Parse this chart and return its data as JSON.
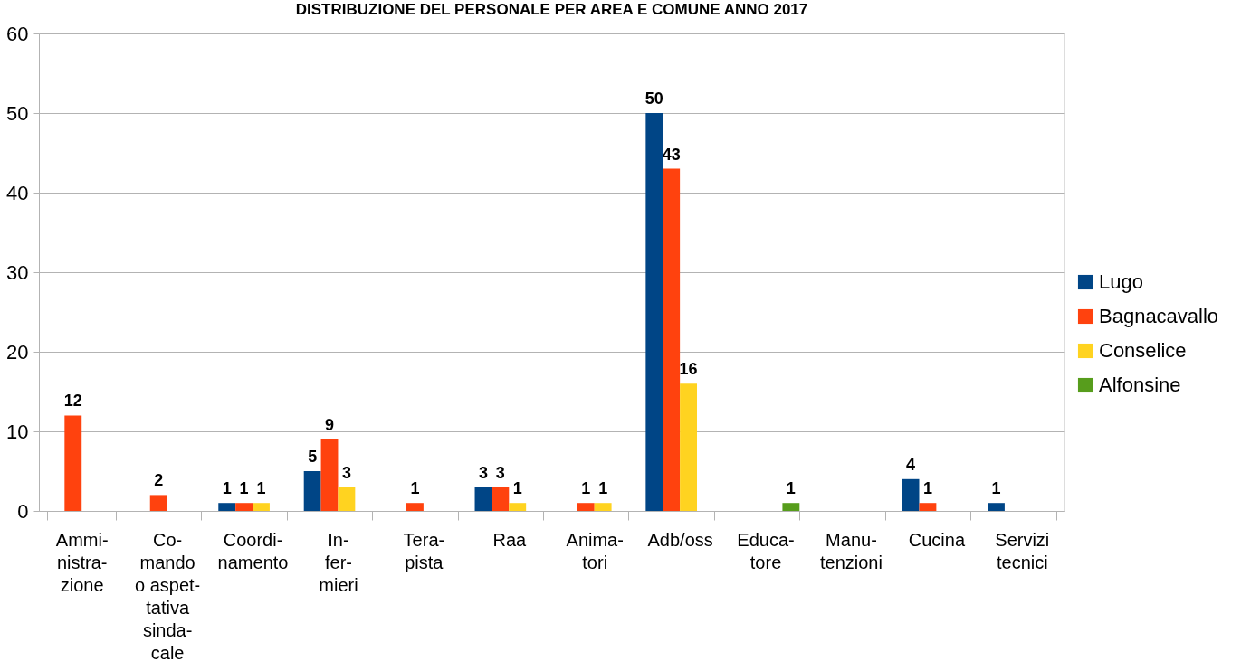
{
  "chart_data": {
    "type": "bar",
    "title": "DISTRIBUZIONE DEL PERSONALE PER AREA E COMUNE ANNO 2017",
    "categories": [
      "Ammi-\nnistra-\nzione",
      "Co-\nmando\no aspet-\ntativa\nsinda-\ncale",
      "Coordi-\nnamento",
      "In-\nfer-\nmieri",
      "Tera-\npista",
      "Raa",
      "Anima-\ntori",
      "Adb/oss",
      "Educa-\ntore",
      "Manu-\ntenzioni",
      "Cucina",
      "Servizi\ntecnici"
    ],
    "series": [
      {
        "name": "Lugo",
        "color": "#004586",
        "values": [
          null,
          null,
          1,
          5,
          null,
          3,
          null,
          50,
          null,
          null,
          4,
          1
        ]
      },
      {
        "name": "Bagnacavallo",
        "color": "#ff420e",
        "values": [
          12,
          2,
          1,
          9,
          1,
          3,
          1,
          43,
          null,
          null,
          1,
          null
        ]
      },
      {
        "name": "Conselice",
        "color": "#ffd320",
        "values": [
          null,
          null,
          1,
          3,
          null,
          1,
          1,
          16,
          null,
          null,
          null,
          null
        ]
      },
      {
        "name": "Alfonsine",
        "color": "#579d1c",
        "values": [
          null,
          null,
          null,
          null,
          null,
          null,
          null,
          null,
          1,
          null,
          null,
          null
        ]
      }
    ],
    "ylim": [
      0,
      60
    ],
    "yticks": [
      0,
      10,
      20,
      30,
      40,
      50,
      60
    ],
    "grid": "y",
    "legend": "right",
    "data_labels": true
  }
}
